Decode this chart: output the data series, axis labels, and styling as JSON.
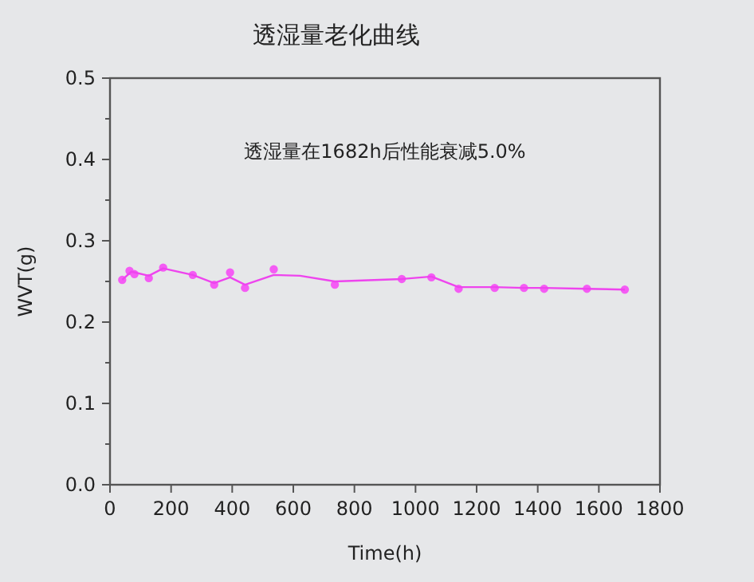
{
  "chart_data": {
    "type": "scatter",
    "title": "透湿量老化曲线",
    "xlabel": "Time(h)",
    "ylabel": "WVT(g)",
    "annotations": [
      "透湿量在1682h后性能衰减5.0%"
    ],
    "series": [
      {
        "color": "#f45cf4",
        "marker": "circle",
        "x": [
          40,
          64,
          80,
          127,
          174,
          271,
          341,
          393,
          442,
          536,
          736,
          955,
          1052,
          1141,
          1259,
          1355,
          1421,
          1561,
          1685
        ],
        "values": [
          0.252,
          0.263,
          0.259,
          0.254,
          0.267,
          0.258,
          0.246,
          0.261,
          0.242,
          0.265,
          0.246,
          0.253,
          0.255,
          0.241,
          0.242,
          0.242,
          0.241,
          0.241,
          0.24
        ]
      },
      {
        "type": "line",
        "color": "#ee44ee",
        "marker": "none",
        "x": [
          40,
          70,
          127,
          174,
          271,
          341,
          393,
          442,
          536,
          622,
          736,
          955,
          1052,
          1141,
          1259,
          1355,
          1421,
          1561,
          1685
        ],
        "values": [
          0.252,
          0.262,
          0.257,
          0.266,
          0.258,
          0.248,
          0.255,
          0.246,
          0.258,
          0.257,
          0.25,
          0.253,
          0.256,
          0.243,
          0.243,
          0.242,
          0.242,
          0.241,
          0.24
        ]
      }
    ],
    "xlim": [
      0,
      1800
    ],
    "xticks": [
      0,
      200,
      400,
      600,
      800,
      1000,
      1200,
      1400,
      1600,
      1800
    ],
    "ylim": [
      0,
      0.5
    ],
    "yticks": [
      {
        "value": 0,
        "label": "0.0"
      },
      {
        "value": 0.05,
        "label": null
      },
      {
        "value": 0.1,
        "label": "0.1"
      },
      {
        "value": 0.15,
        "label": null
      },
      {
        "value": 0.2,
        "label": "0.2"
      },
      {
        "value": 0.25,
        "label": null
      },
      {
        "value": 0.3,
        "label": "0.3"
      },
      {
        "value": 0.35,
        "label": null
      },
      {
        "value": 0.4,
        "label": "0.4"
      },
      {
        "value": 0.45,
        "label": null
      },
      {
        "value": 0.5,
        "label": "0.5"
      }
    ],
    "grid": false
  }
}
